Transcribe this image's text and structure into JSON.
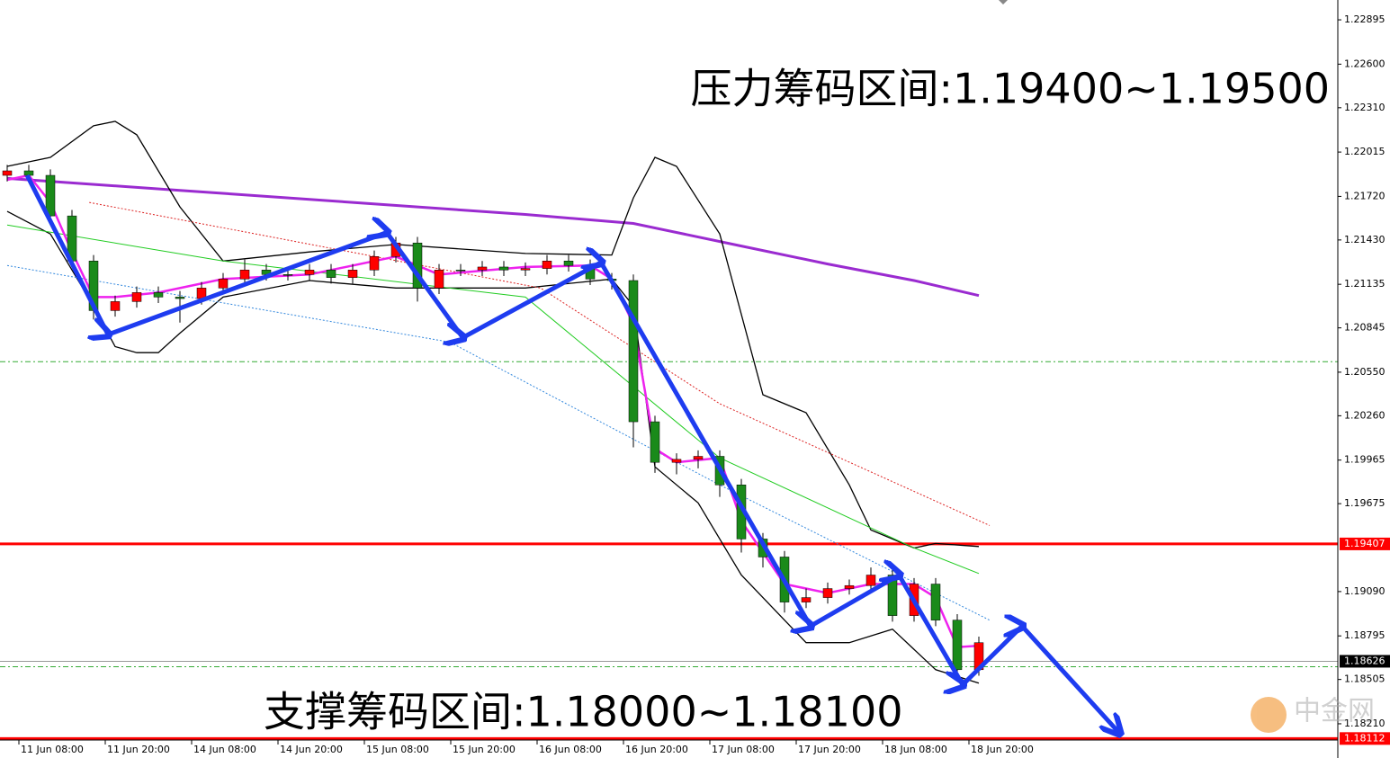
{
  "chart_data": {
    "type": "candlestick",
    "annotations": [
      "压力筹码区间:1.19400~1.19500",
      "支撑筹码区间:1.18000~1.18100"
    ],
    "x_labels": [
      "11 Jun 08:00",
      "11 Jun 20:00",
      "14 Jun 08:00",
      "14 Jun 20:00",
      "15 Jun 08:00",
      "15 Jun 20:00",
      "16 Jun 08:00",
      "16 Jun 20:00",
      "17 Jun 08:00",
      "17 Jun 20:00",
      "18 Jun 08:00",
      "18 Jun 20:00"
    ],
    "up_color": "#ff0000",
    "down_color": "#1a8a1a",
    "open": [
      1.2186,
      1.2189,
      1.2186,
      1.2159,
      1.2129,
      1.2096,
      1.2102,
      1.2108,
      1.2105,
      1.2104,
      1.2111,
      1.2117,
      1.2123,
      1.212,
      1.212,
      1.2123,
      1.2118,
      1.2123,
      1.2132,
      1.2141,
      1.2111,
      1.2123,
      1.2123,
      1.2125,
      1.2123,
      1.2124,
      1.2129,
      1.2126,
      1.2117,
      1.2116,
      1.2022,
      1.1995,
      1.1997,
      1.1999,
      1.198,
      1.1944,
      1.1932,
      1.1902,
      1.1905,
      1.1911,
      1.1913,
      1.192,
      1.1893,
      1.1914,
      1.189,
      1.1857
    ],
    "high": [
      1.2193,
      1.2193,
      1.219,
      1.2163,
      1.2133,
      1.2106,
      1.2112,
      1.2112,
      1.2109,
      1.2115,
      1.2121,
      1.213,
      1.2127,
      1.2124,
      1.2127,
      1.2127,
      1.2127,
      1.2136,
      1.2145,
      1.2145,
      1.2127,
      1.2127,
      1.2129,
      1.2129,
      1.2128,
      1.2133,
      1.2133,
      1.213,
      1.2121,
      1.212,
      1.2026,
      1.2001,
      1.2003,
      1.2003,
      1.1984,
      1.1948,
      1.1936,
      1.1911,
      1.1915,
      1.1917,
      1.1925,
      1.1924,
      1.1918,
      1.1918,
      1.1894,
      1.1879
    ],
    "low": [
      1.2182,
      1.2182,
      1.2155,
      1.2125,
      1.209,
      1.2092,
      1.2098,
      1.2101,
      1.2088,
      1.21,
      1.2107,
      1.2113,
      1.2116,
      1.2116,
      1.2116,
      1.2114,
      1.2114,
      1.2119,
      1.2128,
      1.2102,
      1.2107,
      1.2119,
      1.2119,
      1.2119,
      1.2119,
      1.212,
      1.2122,
      1.2113,
      1.211,
      1.2005,
      1.1988,
      1.1987,
      1.1991,
      1.1972,
      1.1935,
      1.1925,
      1.1895,
      1.1898,
      1.1901,
      1.1907,
      1.1909,
      1.1889,
      1.1889,
      1.1886,
      1.185,
      1.1853
    ],
    "close": [
      1.2189,
      1.2186,
      1.2159,
      1.2129,
      1.2096,
      1.2102,
      1.2108,
      1.2105,
      1.2104,
      1.2111,
      1.2117,
      1.2123,
      1.212,
      1.212,
      1.2123,
      1.2118,
      1.2123,
      1.2132,
      1.2141,
      1.2111,
      1.2123,
      1.2123,
      1.2125,
      1.2123,
      1.2124,
      1.2129,
      1.2126,
      1.2117,
      1.2116,
      1.2022,
      1.1995,
      1.1997,
      1.1999,
      1.198,
      1.1944,
      1.1932,
      1.1902,
      1.1905,
      1.1911,
      1.1913,
      1.192,
      1.1893,
      1.1914,
      1.189,
      1.1857,
      1.1875
    ],
    "overlays": [
      {
        "color": "#9a2bd0",
        "style": "solid",
        "width": 3,
        "x": [
          0,
          8,
          16,
          24,
          29,
          34,
          38,
          42,
          45
        ],
        "values": [
          1.2184,
          1.2176,
          1.2168,
          1.216,
          1.2154,
          1.2139,
          1.2127,
          1.2116,
          1.2106
        ]
      },
      {
        "color": "#000000",
        "style": "solid",
        "width": 1.3,
        "x": [
          0,
          2,
          4,
          5,
          6,
          8,
          10,
          14,
          18,
          24,
          28,
          29,
          30,
          31,
          33,
          35,
          37,
          39,
          40,
          42,
          43,
          45
        ],
        "values": [
          1.2192,
          1.2198,
          1.2219,
          1.2222,
          1.2213,
          1.2165,
          1.2129,
          1.2135,
          1.214,
          1.2134,
          1.2133,
          1.2171,
          1.2198,
          1.2192,
          1.2147,
          1.204,
          1.2028,
          1.198,
          1.195,
          1.1938,
          1.1941,
          1.1939
        ]
      },
      {
        "color": "#000000",
        "style": "solid",
        "width": 1.3,
        "x": [
          0,
          2,
          4,
          5,
          6,
          7,
          8,
          10,
          14,
          18,
          24,
          28,
          29,
          30,
          32,
          34,
          36,
          37,
          39,
          41,
          43,
          45
        ],
        "values": [
          1.2162,
          1.2147,
          1.2099,
          1.2072,
          1.2068,
          1.2068,
          1.2081,
          1.2105,
          1.2116,
          1.2111,
          1.2111,
          1.2117,
          1.2099,
          1.1992,
          1.1968,
          1.192,
          1.189,
          1.1875,
          1.1875,
          1.1884,
          1.1857,
          1.1848
        ]
      },
      {
        "color": "#22cc22",
        "style": "solid",
        "width": 1,
        "x": [
          0,
          10,
          24,
          33,
          42,
          45
        ],
        "values": [
          1.2153,
          1.2129,
          1.2105,
          1.1998,
          1.1938,
          1.1921
        ]
      },
      {
        "color": "#dd2222",
        "style": "dotted",
        "width": 1,
        "x": [
          3.8,
          24.7,
          33,
          45.5
        ],
        "values": [
          1.2168,
          1.2111,
          1.2034,
          1.1953
        ]
      },
      {
        "color": "#3388dd",
        "style": "dotted",
        "width": 1,
        "x": [
          0,
          20.5,
          33,
          45.5
        ],
        "values": [
          1.2126,
          1.2075,
          1.198,
          1.189
        ]
      },
      {
        "color": "#ee22ee",
        "style": "solid",
        "width": 2.5,
        "x": [
          0,
          1,
          2,
          3,
          4,
          5,
          7,
          10,
          14,
          18,
          20,
          24,
          27,
          28,
          29,
          30,
          31,
          33,
          34,
          36,
          38,
          40,
          42,
          43,
          44,
          45
        ],
        "values": [
          1.2183,
          1.2186,
          1.2168,
          1.2135,
          1.2105,
          1.2105,
          1.2108,
          1.2117,
          1.212,
          1.2132,
          1.212,
          1.2125,
          1.2126,
          1.2117,
          1.2087,
          1.2004,
          1.1995,
          1.1998,
          1.1956,
          1.1914,
          1.1908,
          1.1914,
          1.1914,
          1.1905,
          1.1872,
          1.1873
        ]
      }
    ],
    "arrows": {
      "color": "#1e3cf0",
      "x": [
        0.92,
        4.67,
        17.58,
        21.1,
        27.5,
        37.2,
        41.3,
        44.25,
        47,
        51.5
      ],
      "values": [
        1.2186,
        1.208,
        1.2148,
        1.2078,
        1.2128,
        1.1886,
        1.192,
        1.1847,
        1.1886,
        1.1815
      ]
    },
    "levels": [
      {
        "value": 1.19407,
        "color": "#ff0000",
        "width": 3,
        "label_bg": "#ff0000"
      },
      {
        "value": 1.18626,
        "color": "#999999",
        "width": 1,
        "label_bg": "#000000"
      },
      {
        "value": 1.18112,
        "color": "#ff0000",
        "width": 3,
        "label_bg": "#ff0000"
      },
      {
        "value": 1.2062,
        "color": "#33aa33",
        "width": 1,
        "dash": true
      },
      {
        "value": 1.1859,
        "color": "#33aa33",
        "width": 1,
        "dash": true
      }
    ],
    "ylim": [
      1.18108,
      1.23027
    ],
    "yticks": [
      1.22895,
      {
        "value": 1.226,
        "label": "1.22600"
      },
      {
        "value": 1.2231,
        "label": "1.22310"
      },
      1.22015,
      {
        "value": 1.2172,
        "label": "1.21720"
      },
      {
        "value": 1.2143,
        "label": "1.21430"
      },
      1.21135,
      1.20845,
      {
        "value": 1.2055,
        "label": "1.20550"
      },
      {
        "value": 1.2026,
        "label": "1.20260"
      },
      1.19965,
      1.19675,
      {
        "value": 1.1909,
        "label": "1.19090"
      },
      1.18795,
      1.18505,
      {
        "value": 1.1821,
        "label": "1.18210"
      }
    ],
    "watermark": "中金网"
  }
}
